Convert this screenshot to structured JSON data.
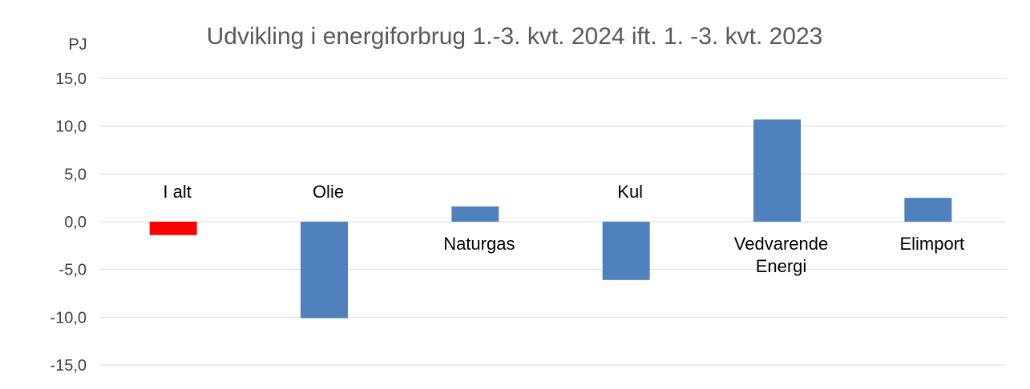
{
  "chart_data": {
    "type": "bar",
    "title": "Udvikling i energiforbrug 1.-3. kvt. 2024 ift. 1. -3. kvt. 2023",
    "ylabel": "PJ",
    "xlabel": "",
    "ylim": [
      -15,
      15
    ],
    "yticks": [
      "15,0",
      "10,0",
      "5,0",
      "0,0",
      "-5,0",
      "-10,0",
      "-15,0"
    ],
    "ytick_values": [
      15,
      10,
      5,
      0,
      -5,
      -10,
      -15
    ],
    "grid": true,
    "categories": [
      {
        "label": [
          "I alt"
        ],
        "value": -1.4,
        "color": "#ff0000"
      },
      {
        "label": [
          "Olie"
        ],
        "value": -10.1,
        "color": "#4f81bd"
      },
      {
        "label": [
          "Naturgas"
        ],
        "value": 1.6,
        "color": "#4f81bd"
      },
      {
        "label": [
          "Kul"
        ],
        "value": -6.1,
        "color": "#4f81bd"
      },
      {
        "label": [
          "Vedvarende",
          "Energi"
        ],
        "value": 10.7,
        "color": "#4f81bd"
      },
      {
        "label": [
          "Elimport"
        ],
        "value": 2.5,
        "color": "#4f81bd"
      }
    ]
  }
}
